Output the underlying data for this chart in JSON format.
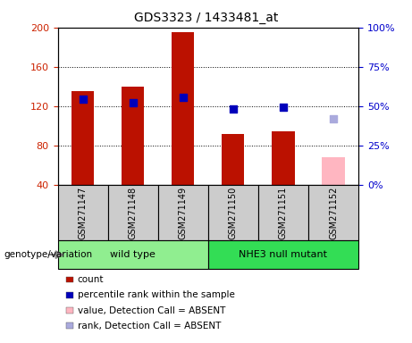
{
  "title": "GDS3323 / 1433481_at",
  "samples": [
    "GSM271147",
    "GSM271148",
    "GSM271149",
    "GSM271150",
    "GSM271151",
    "GSM271152"
  ],
  "groups": [
    {
      "label": "wild type",
      "color": "#90EE90",
      "indices": [
        0,
        1,
        2
      ]
    },
    {
      "label": "NHE3 null mutant",
      "color": "#33DD55",
      "indices": [
        3,
        4,
        5
      ]
    }
  ],
  "count_values": [
    135,
    140,
    195,
    92,
    95,
    null
  ],
  "count_absent": [
    null,
    null,
    null,
    null,
    null,
    68
  ],
  "percentile_values": [
    127,
    124,
    129,
    117,
    119,
    null
  ],
  "percentile_absent": [
    null,
    null,
    null,
    null,
    null,
    107
  ],
  "ylim_left": [
    40,
    200
  ],
  "ylim_right": [
    0,
    100
  ],
  "yticks_left": [
    40,
    80,
    120,
    160,
    200
  ],
  "yticks_right": [
    0,
    25,
    50,
    75,
    100
  ],
  "bar_color": "#BB1100",
  "bar_absent_color": "#FFB6C1",
  "dot_color": "#0000BB",
  "dot_absent_color": "#AAAADD",
  "dot_size": 35,
  "title_fontsize": 10,
  "axis_label_color_left": "#CC2200",
  "axis_label_color_right": "#0000CC",
  "group_label": "genotype/variation",
  "legend_items": [
    {
      "label": "count",
      "color": "#BB1100"
    },
    {
      "label": "percentile rank within the sample",
      "color": "#0000BB"
    },
    {
      "label": "value, Detection Call = ABSENT",
      "color": "#FFB6C1"
    },
    {
      "label": "rank, Detection Call = ABSENT",
      "color": "#AAAADD"
    }
  ],
  "sample_box_color": "#CCCCCC",
  "bar_width": 0.45
}
